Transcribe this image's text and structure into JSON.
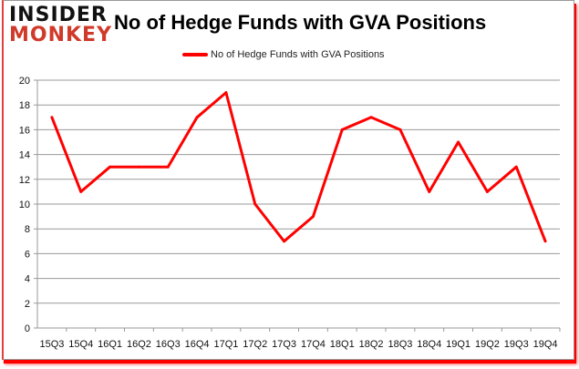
{
  "logo": {
    "line1": "INSIDER",
    "line2": "MONKEY"
  },
  "chart_data": {
    "type": "line",
    "title": "No of Hedge Funds with GVA Positions",
    "categories": [
      "15Q3",
      "15Q4",
      "16Q1",
      "16Q2",
      "16Q3",
      "16Q4",
      "17Q1",
      "17Q2",
      "17Q3",
      "17Q4",
      "18Q1",
      "18Q2",
      "18Q3",
      "18Q4",
      "19Q1",
      "19Q2",
      "19Q3",
      "19Q4"
    ],
    "series": [
      {
        "name": "No of Hedge Funds with GVA Positions",
        "values": [
          17,
          11,
          13,
          13,
          13,
          17,
          19,
          10,
          7,
          9,
          16,
          17,
          16,
          11,
          15,
          11,
          13,
          7
        ],
        "color": "#ff0000"
      }
    ],
    "ylim": [
      0,
      20
    ],
    "yticks": [
      0,
      2,
      4,
      6,
      8,
      10,
      12,
      14,
      16,
      18,
      20
    ],
    "grid": true,
    "legend": "top-center"
  }
}
